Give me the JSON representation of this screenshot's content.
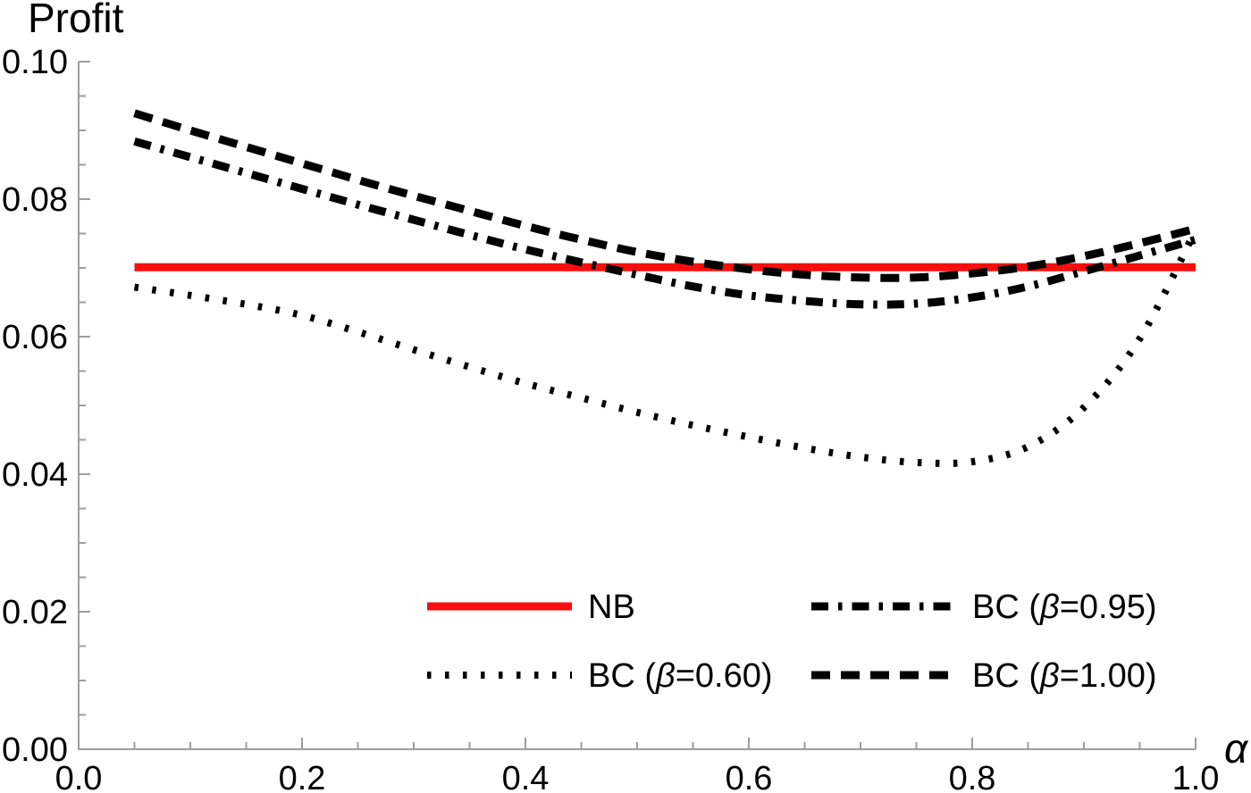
{
  "chart_data": {
    "type": "line",
    "ylabel": "Profit",
    "xlabel": "α",
    "xlim": [
      0,
      1.0
    ],
    "ylim": [
      0,
      0.1
    ],
    "grid": false,
    "axis_color": "#9e9e9e",
    "accent_red": "#fa0d0d",
    "line_black": "#000000",
    "x_ticks": {
      "values": [
        0,
        0.2,
        0.4,
        0.6,
        0.8,
        1.0
      ],
      "labels": [
        "0.0",
        "0.2",
        "0.4",
        "0.6",
        "0.8",
        "1.0"
      ],
      "minor_step": 0.05
    },
    "y_ticks": {
      "values": [
        0,
        0.02,
        0.04,
        0.06,
        0.08,
        0.1
      ],
      "labels": [
        "0.00",
        "0.02",
        "0.04",
        "0.06",
        "0.08",
        "0.10"
      ],
      "minor_step": 0.005
    },
    "x": [
      0.05,
      0.1,
      0.15,
      0.2,
      0.25,
      0.3,
      0.35,
      0.4,
      0.45,
      0.5,
      0.55,
      0.6,
      0.65,
      0.7,
      0.75,
      0.8,
      0.85,
      0.9,
      0.95,
      1.0
    ],
    "series": [
      {
        "id": "nb",
        "name": "NB",
        "style": "solid",
        "color": "#fa0d0d",
        "values": [
          0.0701,
          0.0701,
          0.0701,
          0.0701,
          0.0701,
          0.0701,
          0.0701,
          0.0701,
          0.0701,
          0.0701,
          0.0701,
          0.0701,
          0.0701,
          0.0701,
          0.0701,
          0.0701,
          0.0701,
          0.0701,
          0.0701,
          0.0701
        ]
      },
      {
        "id": "bc-060",
        "name": "BC (β=0.60)",
        "style": "dotted",
        "color": "#000000",
        "values": [
          0.0672,
          0.066,
          0.0647,
          0.0631,
          0.0607,
          0.0581,
          0.0556,
          0.0532,
          0.0511,
          0.049,
          0.0471,
          0.0454,
          0.0438,
          0.0425,
          0.0417,
          0.0418,
          0.044,
          0.0497,
          0.0597,
          0.0755
        ]
      },
      {
        "id": "bc-095",
        "name": "BC (β=0.95)",
        "style": "dashdot",
        "color": "#000000",
        "values": [
          0.0884,
          0.0861,
          0.0838,
          0.0815,
          0.0792,
          0.077,
          0.0748,
          0.0727,
          0.0708,
          0.069,
          0.0673,
          0.066,
          0.0652,
          0.0647,
          0.0648,
          0.0657,
          0.0673,
          0.0695,
          0.0718,
          0.0741
        ]
      },
      {
        "id": "bc-100",
        "name": "BC (β=1.00)",
        "style": "dashed",
        "color": "#000000",
        "values": [
          0.0925,
          0.09,
          0.0876,
          0.0852,
          0.0828,
          0.0805,
          0.0783,
          0.0761,
          0.0741,
          0.0723,
          0.0709,
          0.0698,
          0.069,
          0.0686,
          0.0686,
          0.0692,
          0.0702,
          0.0717,
          0.0736,
          0.0757
        ]
      }
    ],
    "legend": {
      "position": "lower-center-inside",
      "rows": [
        [
          0,
          2
        ],
        [
          1,
          3
        ]
      ],
      "labels": [
        "NB",
        "BC (β=0.95)",
        "BC (β=0.60)",
        "BC (β=1.00)"
      ]
    }
  }
}
